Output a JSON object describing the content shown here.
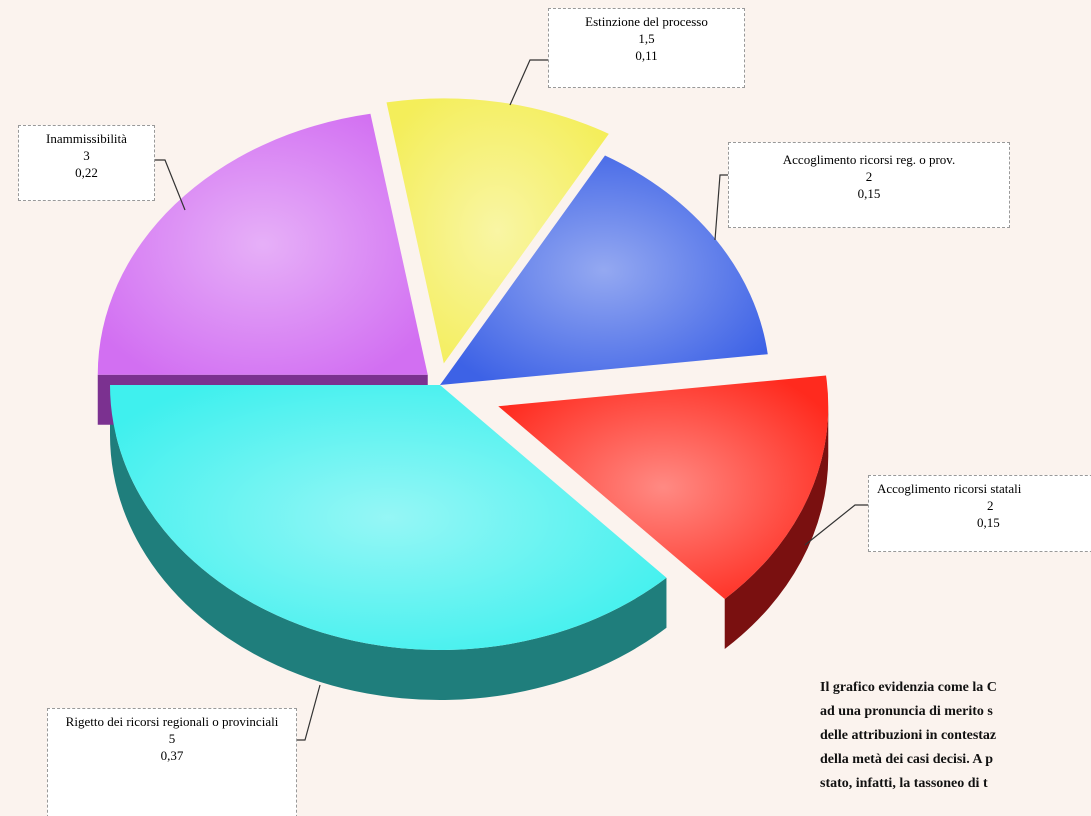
{
  "chart_data": {
    "type": "pie",
    "categories": [
      "Estinzione del processo",
      "Accoglimento ricorsi reg. o prov.",
      "Accoglimento ricorsi statali",
      "Rigetto dei ricorsi regionali o provinciali",
      "Inammissibilità"
    ],
    "values": [
      1.5,
      2,
      2,
      5,
      3
    ],
    "value_labels": [
      "1,5",
      "2",
      "2",
      "5",
      "3"
    ],
    "shares": [
      0.11,
      0.15,
      0.15,
      0.37,
      0.22
    ],
    "share_labels": [
      "0,11",
      "0,15",
      "0,15",
      "0,37",
      "0,22"
    ],
    "colors": [
      "#f4ee5a",
      "#3d62e6",
      "#ff2a1e",
      "#3ff0ee",
      "#d26ff2"
    ],
    "side_colors": [
      "#8c8a22",
      "#1c2c92",
      "#7a1010",
      "#1f7e7c",
      "#7b3190"
    ]
  },
  "text": [
    "Il grafico evidenzia come la C",
    "ad una pronuncia di merito s",
    "delle attribuzioni in contestaz",
    "della metà dei casi decisi. A p",
    "stato, infatti, la tassoneo di t"
  ]
}
